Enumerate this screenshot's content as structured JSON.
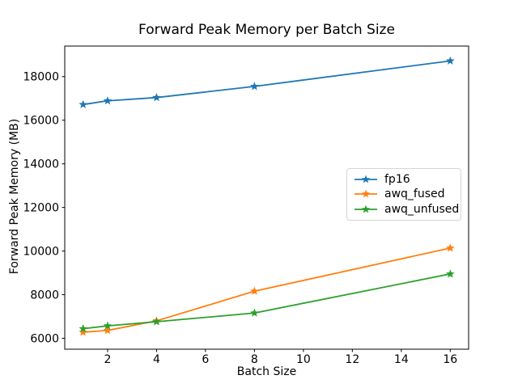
{
  "figure": {
    "background": "#ffffff",
    "axes_color": "#000000",
    "text_color": "#000000"
  },
  "chart_data": {
    "type": "line",
    "title": "Forward Peak Memory per Batch Size",
    "xlabel": "Batch Size",
    "ylabel": "Forward Peak Memory (MB)",
    "x": [
      1,
      2,
      4,
      8,
      16
    ],
    "series": [
      {
        "name": "fp16",
        "color": "#1f77b4",
        "marker": "star",
        "values": [
          16720,
          16890,
          17040,
          17550,
          18720
        ]
      },
      {
        "name": "awq_fused",
        "color": "#ff7f0e",
        "marker": "star",
        "values": [
          6280,
          6360,
          6800,
          8160,
          10140
        ]
      },
      {
        "name": "awq_unfused",
        "color": "#2ca02c",
        "marker": "star",
        "values": [
          6440,
          6570,
          6760,
          7160,
          8950
        ]
      }
    ],
    "xlim": [
      0.25,
      16.75
    ],
    "ylim": [
      5500,
      19400
    ],
    "xticks": [
      2,
      4,
      6,
      8,
      10,
      12,
      14,
      16
    ],
    "yticks": [
      6000,
      8000,
      10000,
      12000,
      14000,
      16000,
      18000
    ],
    "grid": false,
    "legend_position": "center-right"
  }
}
